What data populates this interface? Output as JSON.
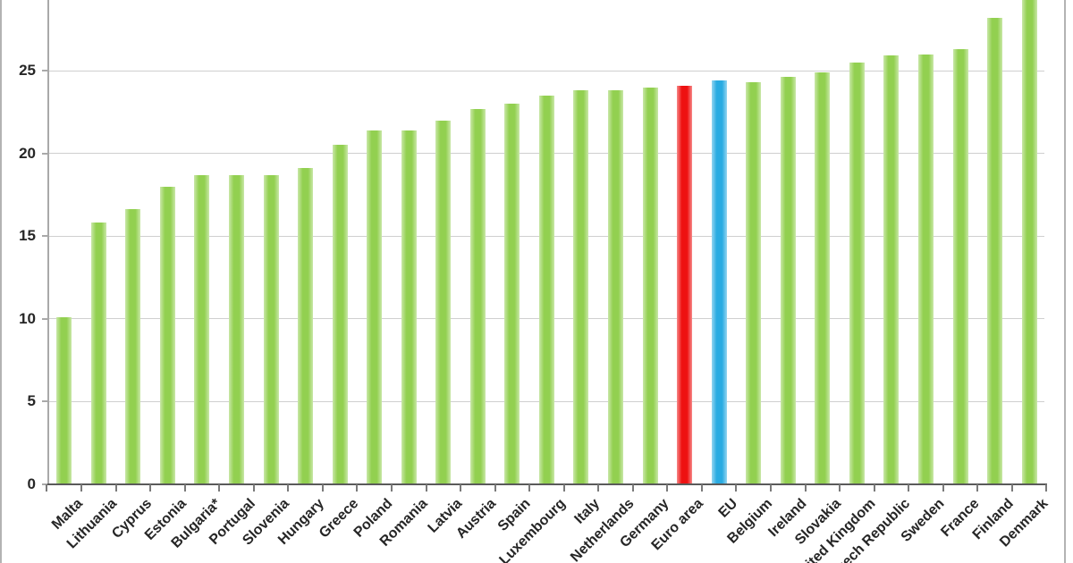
{
  "chart_data": {
    "type": "bar",
    "categories": [
      "Malta",
      "Lithuania",
      "Cyprus",
      "Estonia",
      "Bulgaria*",
      "Portugal",
      "Slovenia",
      "Hungary",
      "Greece",
      "Poland",
      "Romania",
      "Latvia",
      "Austria",
      "Spain",
      "Luxembourg",
      "Italy",
      "Netherlands",
      "Germany",
      "Euro area",
      "EU",
      "Belgium",
      "Ireland",
      "Slovakia",
      "United Kingdom",
      "Czech Republic",
      "Sweden",
      "France",
      "Finland",
      "Denmark"
    ],
    "values": [
      10.1,
      15.8,
      16.6,
      18.0,
      18.7,
      18.7,
      18.7,
      19.1,
      20.5,
      21.4,
      21.4,
      22.0,
      22.7,
      23.0,
      23.5,
      23.8,
      23.8,
      24.0,
      24.1,
      24.4,
      24.3,
      24.6,
      24.9,
      25.5,
      25.9,
      26.0,
      26.3,
      28.2,
      29.4
    ],
    "bar_colors": [
      "#92d050",
      "#92d050",
      "#92d050",
      "#92d050",
      "#92d050",
      "#92d050",
      "#92d050",
      "#92d050",
      "#92d050",
      "#92d050",
      "#92d050",
      "#92d050",
      "#92d050",
      "#92d050",
      "#92d050",
      "#92d050",
      "#92d050",
      "#92d050",
      "#ee1111",
      "#29abe2",
      "#92d050",
      "#92d050",
      "#92d050",
      "#92d050",
      "#92d050",
      "#92d050",
      "#92d050",
      "#92d050",
      "#92d050"
    ],
    "highlight_colors": {
      "default_green": "#92d050",
      "euro_area_red": "#ee1111",
      "eu_blue": "#29abe2"
    },
    "xlabel": "",
    "ylabel": "",
    "y_ticks": [
      0,
      5,
      10,
      15,
      20,
      25
    ],
    "y_tick_labels": [
      "0",
      "5",
      "10",
      "15",
      "20",
      "25"
    ],
    "ylim_visible": [
      0,
      29.3
    ],
    "grid": "horizontal",
    "grid_color": "#cfcfcf",
    "legend": "none",
    "note": "top of chart cropped; tallest bar (Denmark) cut by image edge"
  }
}
